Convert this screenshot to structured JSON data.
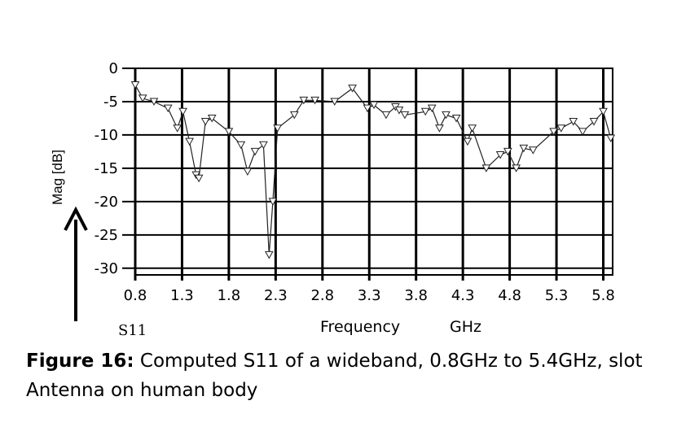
{
  "chart_data": {
    "type": "line",
    "series_label": "S11",
    "xlabel": "Frequency",
    "xunit": "GHz",
    "ylabel": "Mag [dB]",
    "xlim": [
      0.8,
      5.9
    ],
    "ylim": [
      -31,
      0
    ],
    "x_ticks": [
      "0.8",
      "1.3",
      "1.8",
      "2.3",
      "2.8",
      "3.3",
      "3.8",
      "4.3",
      "4.8",
      "5.3",
      "5.8"
    ],
    "y_ticks": [
      "0",
      "-5",
      "-10",
      "-15",
      "-20",
      "-25",
      "-30"
    ],
    "y_tick_values": [
      0,
      -5,
      -10,
      -15,
      -20,
      -25,
      -30
    ],
    "grid": true,
    "series": [
      {
        "x": [
          0.8,
          0.88,
          1.0,
          1.15,
          1.25,
          1.31,
          1.38,
          1.45,
          1.48,
          1.55,
          1.62,
          1.8,
          1.93,
          2.0,
          2.08,
          2.17,
          2.23,
          2.27,
          2.32,
          2.5,
          2.6,
          2.72,
          2.93,
          3.12,
          3.28,
          3.35,
          3.48,
          3.58,
          3.62,
          3.68,
          3.9,
          3.97,
          4.05,
          4.12,
          4.23,
          4.35,
          4.4,
          4.55,
          4.7,
          4.78,
          4.87,
          4.95,
          5.05,
          5.27,
          5.35,
          5.48,
          5.58,
          5.7,
          5.8,
          5.88
        ],
        "y": [
          -2.5,
          -4.5,
          -5.0,
          -6.0,
          -9.0,
          -6.5,
          -11.0,
          -16.0,
          -16.5,
          -8.0,
          -7.5,
          -9.5,
          -11.5,
          -15.5,
          -12.5,
          -11.5,
          -28.0,
          -20.0,
          -9.0,
          -7.0,
          -4.8,
          -4.8,
          -5.0,
          -3.0,
          -6.0,
          -5.5,
          -7.0,
          -5.8,
          -6.3,
          -7.0,
          -6.5,
          -6.0,
          -9.0,
          -7.0,
          -7.5,
          -11.0,
          -9.0,
          -15.0,
          -13.0,
          -12.5,
          -15.0,
          -12.0,
          -12.3,
          -9.5,
          -9.0,
          -8.0,
          -9.5,
          -8.0,
          -6.5,
          -10.5
        ]
      }
    ]
  },
  "caption": {
    "label": "Figure 16:",
    "text": " Computed S11 of a wideband, 0.8GHz to 5.4GHz, slot Antenna on human body"
  }
}
